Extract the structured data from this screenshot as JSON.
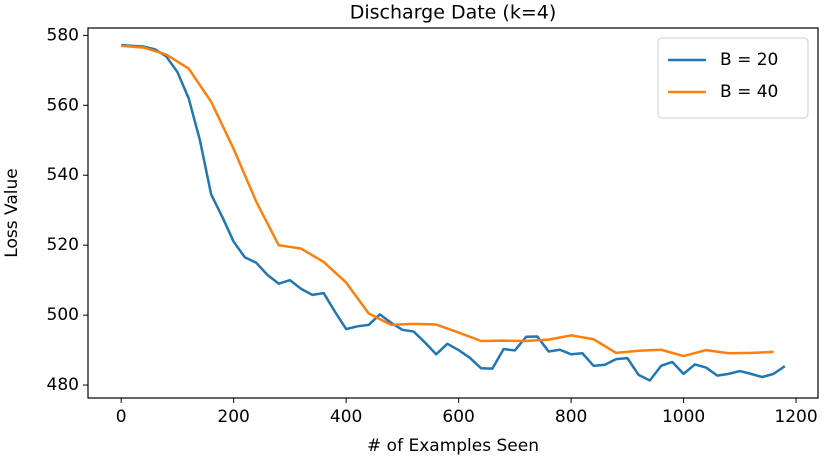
{
  "chart_data": {
    "type": "line",
    "title": "Discharge Date (k=4)",
    "x_label": "# of Examples Seen",
    "y_label": "Loss Value",
    "xlim": [
      -59,
      1239
    ],
    "ylim": [
      476.3,
      582.1
    ],
    "xticks": [
      0,
      200,
      400,
      600,
      800,
      1000,
      1200
    ],
    "yticks": [
      480,
      500,
      520,
      540,
      560,
      580
    ],
    "legend": "upper right",
    "grid": false,
    "series": [
      {
        "name": "B = 20",
        "color": "#1f77b4",
        "x": [
          0,
          20,
          40,
          60,
          80,
          100,
          120,
          140,
          160,
          180,
          200,
          220,
          240,
          260,
          280,
          300,
          320,
          340,
          360,
          380,
          400,
          420,
          440,
          460,
          480,
          500,
          520,
          540,
          560,
          580,
          600,
          620,
          640,
          660,
          680,
          700,
          720,
          740,
          760,
          780,
          800,
          820,
          840,
          860,
          880,
          900,
          920,
          940,
          960,
          980,
          1000,
          1020,
          1040,
          1060,
          1080,
          1100,
          1120,
          1140,
          1160,
          1180
        ],
        "values": [
          577.2,
          577,
          576.8,
          576,
          574,
          569.5,
          562,
          550,
          534.5,
          528,
          521,
          516.5,
          515,
          511.5,
          509,
          510,
          507.5,
          505.8,
          506.3,
          501,
          496,
          496.8,
          497.2,
          500.2,
          497.8,
          495.8,
          495.3,
          492.2,
          488.8,
          491.8,
          490,
          487.8,
          484.8,
          484.7,
          490.3,
          489.9,
          493.8,
          493.9,
          489.6,
          490.1,
          488.8,
          489.1,
          485.5,
          485.8,
          487.4,
          487.7,
          482.9,
          481.3,
          485.5,
          486.6,
          483.2,
          485.9,
          485,
          482.7,
          483.2,
          484,
          483.2,
          482.3,
          483.2,
          485.4
        ]
      },
      {
        "name": "B = 40",
        "color": "#ff7f0e",
        "x": [
          0,
          40,
          80,
          120,
          160,
          200,
          240,
          280,
          320,
          360,
          400,
          440,
          480,
          520,
          560,
          600,
          640,
          680,
          720,
          760,
          800,
          840,
          880,
          920,
          960,
          1000,
          1040,
          1080,
          1120,
          1160
        ],
        "values": [
          577,
          576.5,
          574.5,
          570.5,
          561,
          547.5,
          532.5,
          520,
          519,
          515.2,
          509.3,
          500.5,
          497.2,
          497.5,
          497.3,
          495,
          492.6,
          492.7,
          492.6,
          493,
          494.2,
          493.1,
          489.2,
          489.8,
          490.1,
          488.3,
          490,
          489.1,
          489.2,
          489.5
        ]
      }
    ]
  }
}
